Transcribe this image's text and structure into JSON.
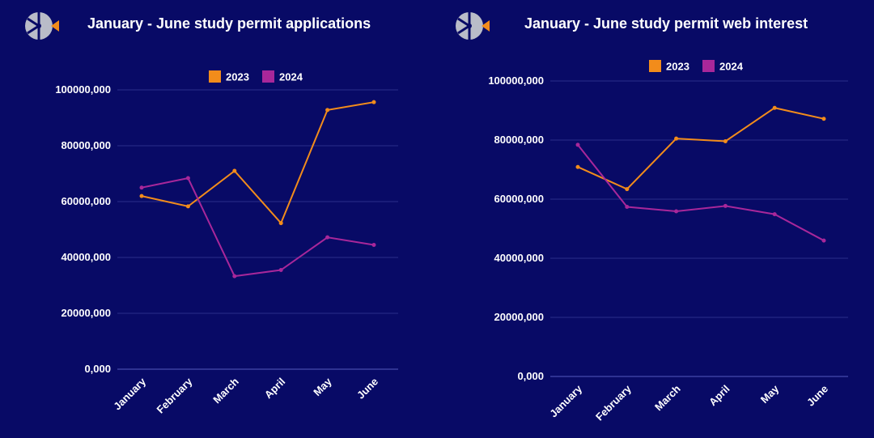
{
  "colors": {
    "background": "#080a66",
    "series_2023": "#f28c1b",
    "series_2024": "#a8279a",
    "grid": "#2a2f8a",
    "logo_gray": "#b9bcc8",
    "logo_orange": "#f28c1b"
  },
  "icons": {
    "logo": "brand-logo-icon"
  },
  "chart_data": [
    {
      "type": "line",
      "title": "January - June study permit applications",
      "categories": [
        "January",
        "February",
        "March",
        "April",
        "May",
        "June"
      ],
      "series": [
        {
          "name": "2023",
          "values": [
            62000,
            58300,
            71000,
            52300,
            92800,
            95600
          ]
        },
        {
          "name": "2024",
          "values": [
            65000,
            68400,
            33300,
            35500,
            47200,
            44500
          ]
        }
      ],
      "yticks": [
        "0,000",
        "20000,000",
        "40000,000",
        "60000,000",
        "80000,000",
        "100000,000"
      ],
      "ylim": [
        0,
        100000
      ],
      "grid": true,
      "legend": "top"
    },
    {
      "type": "line",
      "title": "January - June study permit web interest",
      "categories": [
        "January",
        "February",
        "March",
        "April",
        "May",
        "June"
      ],
      "series": [
        {
          "name": "2023",
          "values": [
            70900,
            63400,
            80500,
            79600,
            90900,
            87200
          ]
        },
        {
          "name": "2024",
          "values": [
            78400,
            57400,
            55900,
            57700,
            54900,
            46000
          ]
        }
      ],
      "yticks": [
        "0,000",
        "20000,000",
        "40000,000",
        "60000,000",
        "80000,000",
        "100000,000"
      ],
      "ylim": [
        0,
        100000
      ],
      "grid": true,
      "legend": "top"
    }
  ]
}
